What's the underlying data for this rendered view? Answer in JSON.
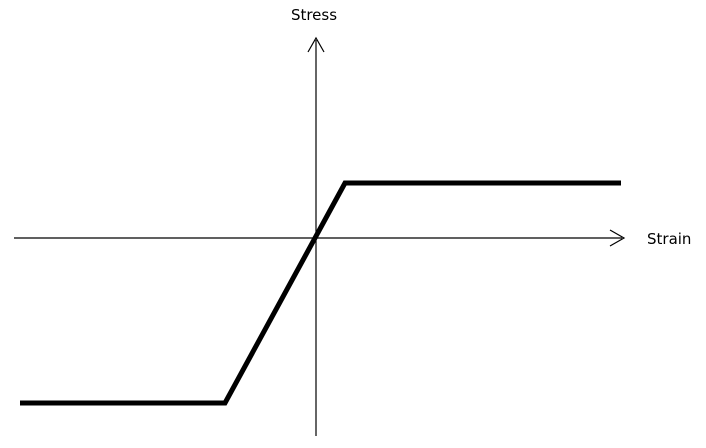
{
  "diagram": {
    "y_axis_label": "Stress",
    "x_axis_label": "Strain",
    "curve_color": "#000000",
    "axis_color": "#000000",
    "curve_description_points": [
      {
        "strain": -1,
        "stress": -1
      },
      {
        "strain": -0.3,
        "stress": -1
      },
      {
        "strain": 0.2,
        "stress": 0.3
      },
      {
        "strain": 1,
        "stress": 0.3
      }
    ]
  }
}
